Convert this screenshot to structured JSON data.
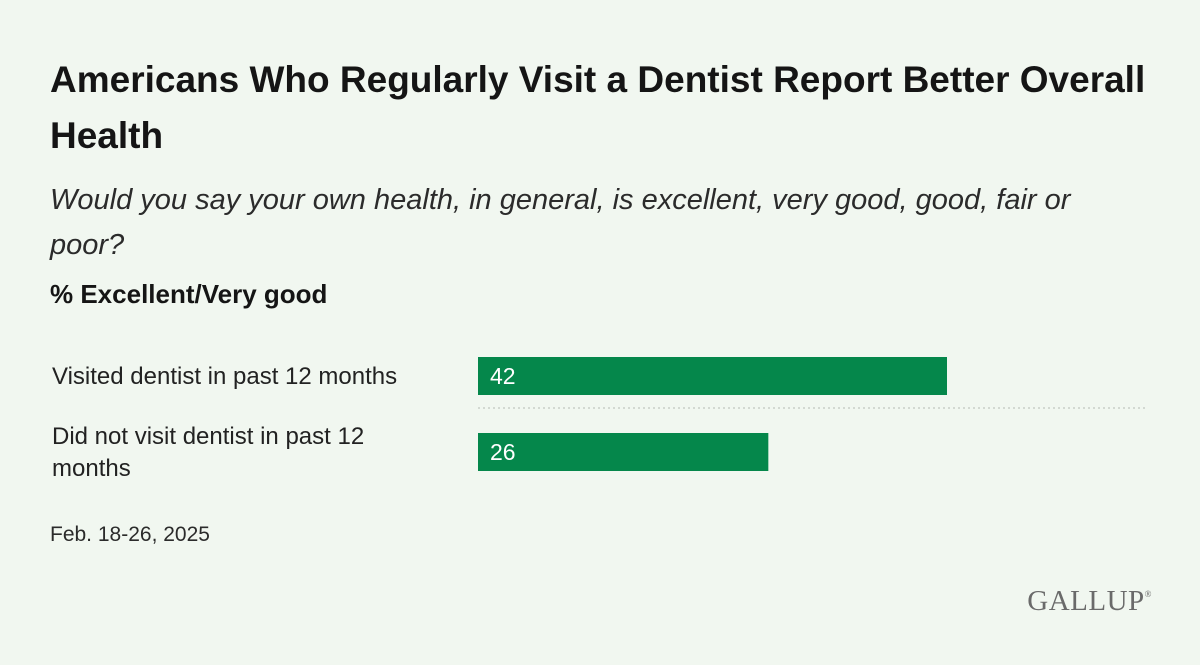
{
  "header": {
    "title": "Americans Who Regularly Visit a Dentist Report Better Overall Health",
    "question": "Would you say your own health, in general, is excellent, very good, good, fair or poor?",
    "measure": "% Excellent/Very good"
  },
  "footer": {
    "source_date": "Feb. 18-26, 2025",
    "logo_text": "GALLUP",
    "logo_mark": "®"
  },
  "colors": {
    "bar": "#05874b",
    "divider": "#c9cfc8",
    "background": "#f1f7f0"
  },
  "chart_data": {
    "type": "bar",
    "orientation": "horizontal",
    "categories": [
      "Visited dentist in past 12 months",
      "Did not visit dentist in past 12 months"
    ],
    "series": [
      {
        "values": [
          42,
          26
        ]
      }
    ],
    "xlim": [
      0,
      100
    ],
    "grid": false,
    "data_labels": true
  }
}
